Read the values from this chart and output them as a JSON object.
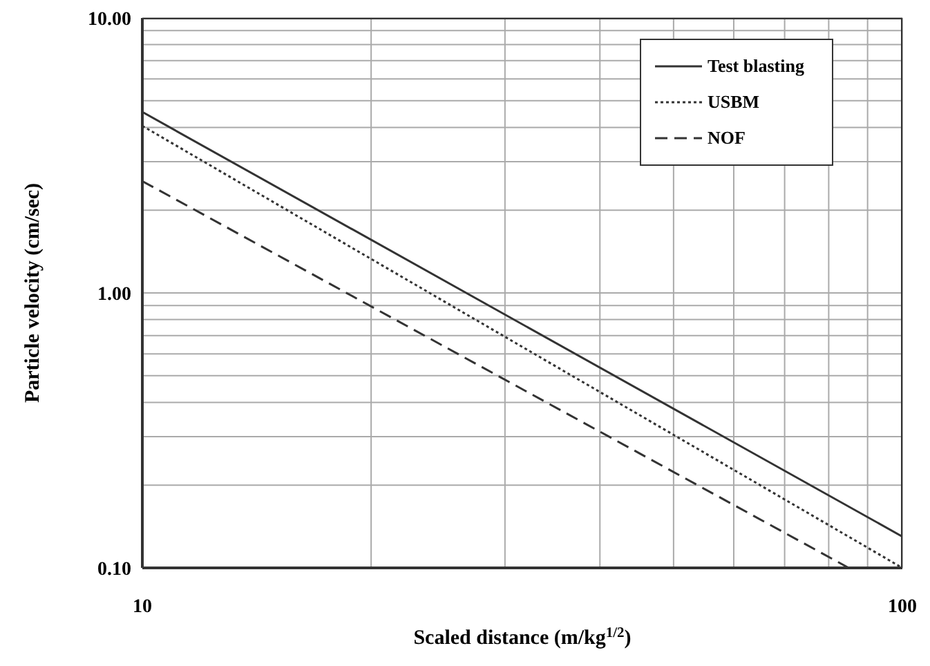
{
  "chart_data": {
    "type": "line",
    "xlabel": "Scaled distance (m/kg$^{1/2}$)",
    "ylabel": "Particle velocity (cm/sec)",
    "log": "xy",
    "xlim": [
      10,
      100
    ],
    "ylim": [
      0.1,
      10
    ],
    "xticks": [
      {
        "value": 10,
        "label": "10"
      },
      {
        "value": 20,
        "label": null
      },
      {
        "value": 30,
        "label": null
      },
      {
        "value": 40,
        "label": null
      },
      {
        "value": 50,
        "label": null
      },
      {
        "value": 60,
        "label": null
      },
      {
        "value": 70,
        "label": null
      },
      {
        "value": 80,
        "label": null
      },
      {
        "value": 90,
        "label": null
      },
      {
        "value": 100,
        "label": "100"
      }
    ],
    "yticks": [
      {
        "value": 0.1,
        "label": "0.10"
      },
      {
        "value": 0.2,
        "label": null
      },
      {
        "value": 0.3,
        "label": null
      },
      {
        "value": 0.4,
        "label": null
      },
      {
        "value": 0.5,
        "label": null
      },
      {
        "value": 0.6,
        "label": null
      },
      {
        "value": 0.7,
        "label": null
      },
      {
        "value": 0.8,
        "label": null
      },
      {
        "value": 0.9,
        "label": null
      },
      {
        "value": 1,
        "label": "1.00"
      },
      {
        "value": 2,
        "label": null
      },
      {
        "value": 3,
        "label": null
      },
      {
        "value": 4,
        "label": null
      },
      {
        "value": 5,
        "label": null
      },
      {
        "value": 6,
        "label": null
      },
      {
        "value": 7,
        "label": null
      },
      {
        "value": 8,
        "label": null
      },
      {
        "value": 9,
        "label": null
      },
      {
        "value": 10,
        "label": "10.00"
      }
    ],
    "grid": true,
    "legend": "top right",
    "marker": "none",
    "series": [
      {
        "name": "Test blasting",
        "color": "#333333",
        "line_style": "solid",
        "x": [
          10,
          100
        ],
        "values": [
          4.55,
          0.13
        ]
      },
      {
        "name": "USBM",
        "color": "#333333",
        "line_style": "dotted",
        "x": [
          10,
          100
        ],
        "values": [
          4.05,
          0.1
        ]
      },
      {
        "name": "NOF",
        "color": "#333333",
        "line_style": "dashed",
        "x": [
          10,
          85
        ],
        "values": [
          2.55,
          0.1
        ]
      }
    ]
  }
}
